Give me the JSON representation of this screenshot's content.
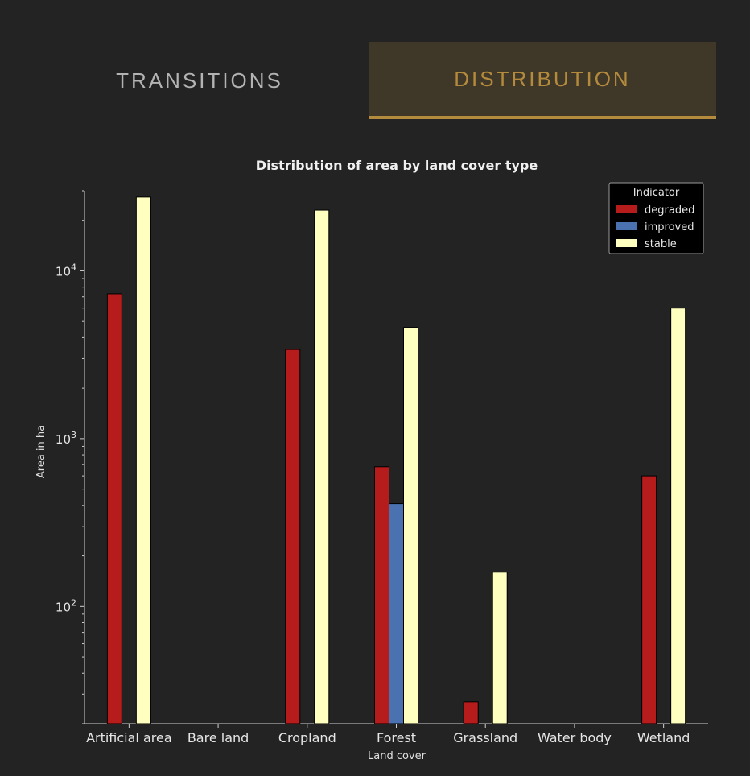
{
  "tabs": {
    "transitions_label": "TRANSITIONS",
    "distribution_label": "DISTRIBUTION",
    "active": "distribution"
  },
  "colors": {
    "background": "#232323",
    "accent": "#b48a3c",
    "active_tab_bg": "#3f3828",
    "inactive_tab_text": "#b3b3b3"
  },
  "chart_data": {
    "type": "bar",
    "title": "Distribution of area by land cover type",
    "xlabel": "Land cover",
    "ylabel": "Area in ha",
    "yscale": "log",
    "ylim": [
      20,
      30000
    ],
    "yticks": [
      {
        "base": "10",
        "exp": "2",
        "value": 100
      },
      {
        "base": "10",
        "exp": "3",
        "value": 1000
      },
      {
        "base": "10",
        "exp": "4",
        "value": 10000
      }
    ],
    "categories": [
      "Artificial area",
      "Bare land",
      "Cropland",
      "Forest",
      "Grassland",
      "Water body",
      "Wetland"
    ],
    "legend": {
      "title": "Indicator",
      "position": "top-right"
    },
    "series": [
      {
        "name": "degraded",
        "color": "#b71c1c",
        "values": [
          7300,
          null,
          3400,
          680,
          27,
          null,
          600
        ]
      },
      {
        "name": "improved",
        "color": "#4a72b0",
        "values": [
          null,
          null,
          null,
          410,
          null,
          null,
          null
        ]
      },
      {
        "name": "stable",
        "color": "#ffffc0",
        "values": [
          27500,
          null,
          23000,
          4600,
          160,
          null,
          6000
        ]
      }
    ],
    "grid": false
  }
}
